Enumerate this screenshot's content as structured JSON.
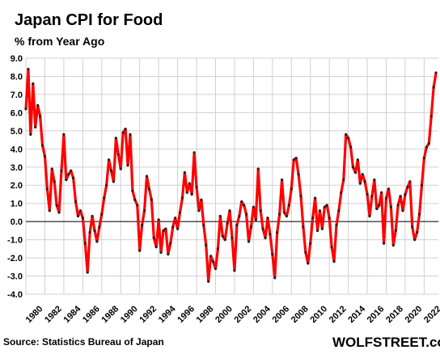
{
  "chart_data": {
    "type": "line",
    "title": "Japan  CPI for Food",
    "ylabel": "% from Year Ago",
    "xlabel": "",
    "xlim": [
      1980,
      2023.5
    ],
    "ylim": [
      -4.0,
      9.0
    ],
    "yticks": [
      9.0,
      8.0,
      7.0,
      6.0,
      5.0,
      4.0,
      3.0,
      2.0,
      1.0,
      0.0,
      -1.0,
      -2.0,
      -3.0,
      -4.0
    ],
    "ytick_labels": [
      "9.0",
      "8.0",
      "7.0",
      "6.0",
      "5.0",
      "4.0",
      "3.0",
      "2.0",
      "1.0",
      "0.0",
      "-1.0",
      "-2.0",
      "-3.0",
      "-4.0"
    ],
    "xticks": [
      1980,
      1982,
      1984,
      1986,
      1988,
      1990,
      1992,
      1994,
      1996,
      1998,
      2000,
      2002,
      2004,
      2006,
      2008,
      2010,
      2012,
      2014,
      2016,
      2018,
      2020,
      2022
    ],
    "xtick_labels": [
      "1980",
      "1982",
      "1984",
      "1986",
      "1988",
      "1990",
      "1992",
      "1994",
      "1996",
      "1998",
      "2000",
      "2002",
      "2004",
      "2006",
      "2008",
      "2010",
      "2012",
      "2014",
      "2016",
      "2018",
      "2020",
      "2022"
    ],
    "grid": true,
    "zero_line": true,
    "line_color": "#ff0000",
    "marker_color": "#222222",
    "series": [
      {
        "x": [
          1980.0,
          1980.25,
          1980.5,
          1980.75,
          1981.0,
          1981.25,
          1981.5,
          1981.75,
          1982.0,
          1982.25,
          1982.5,
          1982.75,
          1983.0,
          1983.25,
          1983.5,
          1983.75,
          1984.0,
          1984.25,
          1984.5,
          1984.75,
          1985.0,
          1985.25,
          1985.5,
          1985.75,
          1986.0,
          1986.25,
          1986.5,
          1986.75,
          1987.0,
          1987.25,
          1987.5,
          1987.75,
          1988.0,
          1988.25,
          1988.5,
          1988.75,
          1989.0,
          1989.25,
          1989.5,
          1989.75,
          1990.0,
          1990.25,
          1990.5,
          1990.75,
          1991.0,
          1991.25,
          1991.5,
          1991.75,
          1992.0,
          1992.25,
          1992.5,
          1992.75,
          1993.0,
          1993.25,
          1993.5,
          1993.75,
          1994.0,
          1994.25,
          1994.5,
          1994.75,
          1995.0,
          1995.25,
          1995.5,
          1995.75,
          1996.0,
          1996.25,
          1996.5,
          1996.75,
          1997.0,
          1997.25,
          1997.5,
          1997.75,
          1998.0,
          1998.25,
          1998.5,
          1998.75,
          1999.0,
          1999.25,
          1999.5,
          1999.75,
          2000.0,
          2000.25,
          2000.5,
          2000.75,
          2001.0,
          2001.25,
          2001.5,
          2001.75,
          2002.0,
          2002.25,
          2002.5,
          2002.75,
          2003.0,
          2003.25,
          2003.5,
          2003.75,
          2004.0,
          2004.25,
          2004.5,
          2004.75,
          2005.0,
          2005.25,
          2005.5,
          2005.75,
          2006.0,
          2006.25,
          2006.5,
          2006.75,
          2007.0,
          2007.25,
          2007.5,
          2007.75,
          2008.0,
          2008.25,
          2008.5,
          2008.75,
          2009.0,
          2009.25,
          2009.5,
          2009.75,
          2010.0,
          2010.25,
          2010.5,
          2010.75,
          2011.0,
          2011.25,
          2011.5,
          2011.75,
          2012.0,
          2012.25,
          2012.5,
          2012.75,
          2013.0,
          2013.25,
          2013.5,
          2013.75,
          2014.0,
          2014.25,
          2014.5,
          2014.75,
          2015.0,
          2015.25,
          2015.5,
          2015.75,
          2016.0,
          2016.25,
          2016.5,
          2016.75,
          2017.0,
          2017.25,
          2017.5,
          2017.75,
          2018.0,
          2018.25,
          2018.5,
          2018.75,
          2019.0,
          2019.25,
          2019.5,
          2019.75,
          2020.0,
          2020.25,
          2020.5,
          2020.75,
          2021.0,
          2021.25,
          2021.5,
          2021.75,
          2022.0,
          2022.25,
          2022.5,
          2022.75,
          2023.0,
          2023.25
        ],
        "y": [
          6.2,
          8.4,
          4.8,
          7.6,
          5.2,
          6.4,
          5.8,
          4.2,
          3.6,
          1.8,
          0.6,
          2.9,
          2.2,
          0.9,
          0.5,
          2.8,
          4.8,
          2.3,
          2.6,
          2.8,
          2.4,
          1.1,
          0.3,
          0.6,
          0.2,
          -1.2,
          -2.8,
          -0.6,
          0.3,
          -0.5,
          -1.1,
          -0.3,
          0.4,
          1.3,
          2.0,
          3.4,
          2.8,
          2.2,
          4.6,
          3.7,
          2.9,
          4.9,
          5.1,
          3.1,
          4.8,
          1.7,
          1.2,
          0.9,
          -1.6,
          -0.2,
          0.6,
          2.5,
          1.8,
          1.2,
          -0.9,
          -1.4,
          0.1,
          -1.7,
          -0.5,
          -0.4,
          -1.8,
          -1.2,
          -0.3,
          0.2,
          -0.4,
          0.5,
          1.3,
          2.7,
          1.6,
          2.1,
          1.5,
          3.8,
          1.9,
          0.6,
          1.2,
          -0.2,
          -1.3,
          -3.3,
          -1.9,
          -2.2,
          -2.6,
          -1.5,
          0.3,
          -0.8,
          -1.0,
          -0.1,
          0.6,
          -0.9,
          -2.7,
          -0.2,
          0.3,
          1.1,
          0.9,
          0.4,
          -1.1,
          -0.3,
          0.8,
          0.1,
          2.9,
          0.6,
          -0.4,
          -0.9,
          0.2,
          -0.7,
          -1.8,
          -3.1,
          -0.6,
          0.4,
          2.3,
          0.5,
          0.3,
          0.9,
          1.8,
          3.4,
          3.5,
          2.6,
          1.4,
          -0.3,
          -1.7,
          -2.3,
          -1.2,
          0.2,
          1.3,
          -0.5,
          0.6,
          -0.4,
          0.8,
          0.9,
          0.2,
          -1.4,
          -2.2,
          -0.2,
          0.6,
          1.6,
          2.3,
          4.8,
          4.6,
          4.1,
          3.0,
          2.7,
          3.4,
          2.1,
          2.6,
          2.2,
          1.5,
          0.3,
          1.4,
          2.3,
          0.7,
          0.9,
          1.6,
          -1.2,
          1.3,
          1.8,
          0.8,
          -1.3,
          -0.5,
          0.9,
          1.4,
          0.6,
          1.5,
          1.9,
          2.2,
          -0.3,
          -1.0,
          -0.6,
          0.4,
          2.0,
          3.5,
          4.1,
          4.3,
          5.8,
          7.4,
          8.2
        ]
      }
    ]
  },
  "footer": {
    "source": "Source: Statistics Bureau of Japan",
    "brand": "WOLFSTREET.com"
  }
}
